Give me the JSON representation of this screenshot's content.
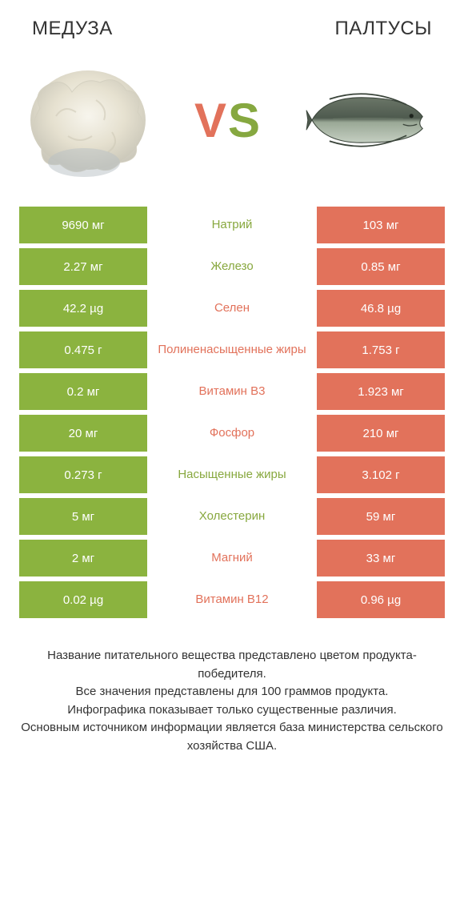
{
  "colors": {
    "green": "#8bb33f",
    "green_dark": "#86a840",
    "orange": "#e2725b",
    "mid_green_text": "#88a83f",
    "mid_orange_text": "#e2725b",
    "white": "#ffffff"
  },
  "titles": {
    "left": "МЕДУЗА",
    "right": "ПАЛТУСЫ"
  },
  "vs": {
    "v": "V",
    "s": "S"
  },
  "rows": [
    {
      "left": "9690 мг",
      "mid": "Натрий",
      "right": "103 мг",
      "winner": "left"
    },
    {
      "left": "2.27 мг",
      "mid": "Железо",
      "right": "0.85 мг",
      "winner": "left"
    },
    {
      "left": "42.2 µg",
      "mid": "Селен",
      "right": "46.8 µg",
      "winner": "right"
    },
    {
      "left": "0.475 г",
      "mid": "Полиненасыщенные жиры",
      "right": "1.753 г",
      "winner": "right"
    },
    {
      "left": "0.2 мг",
      "mid": "Витамин B3",
      "right": "1.923 мг",
      "winner": "right"
    },
    {
      "left": "20 мг",
      "mid": "Фосфор",
      "right": "210 мг",
      "winner": "right"
    },
    {
      "left": "0.273 г",
      "mid": "Насыщенные жиры",
      "right": "3.102 г",
      "winner": "left"
    },
    {
      "left": "5 мг",
      "mid": "Холестерин",
      "right": "59 мг",
      "winner": "left"
    },
    {
      "left": "2 мг",
      "mid": "Магний",
      "right": "33 мг",
      "winner": "right"
    },
    {
      "left": "0.02 µg",
      "mid": "Витамин B12",
      "right": "0.96 µg",
      "winner": "right"
    }
  ],
  "footer_lines": [
    "Название питательного вещества представлено цветом продукта-победителя.",
    "Все значения представлены для 100 граммов продукта.",
    "Инфографика показывает только существенные различия.",
    "Основным источником информации является база министерства сельского хозяйства США."
  ]
}
